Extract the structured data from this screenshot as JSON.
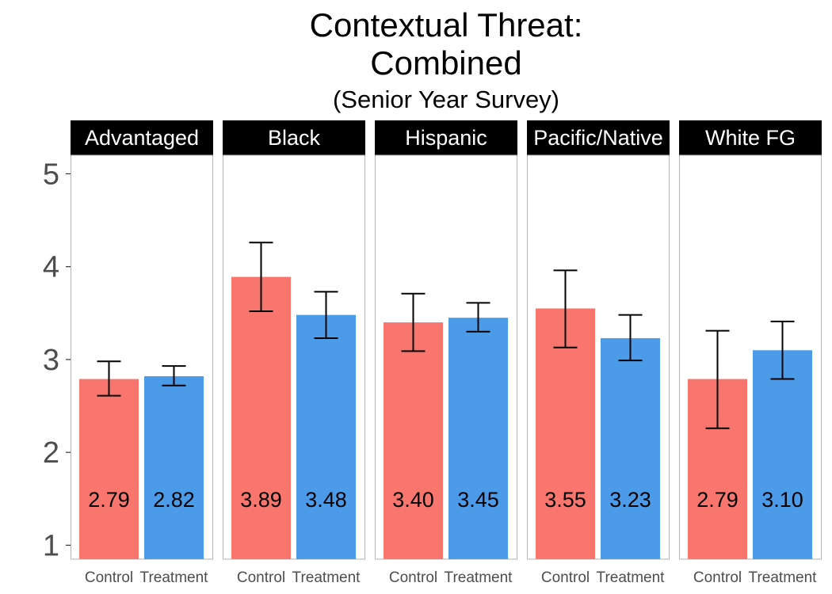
{
  "chart_data": {
    "type": "bar",
    "title_line1": "Contextual Threat:",
    "title_line2": "Combined",
    "subtitle": "(Senior Year Survey)",
    "ylim": [
      0.85,
      5.2
    ],
    "yticks": [
      "1",
      "2",
      "3",
      "4",
      "5"
    ],
    "grid": false,
    "categories": [
      "Control",
      "Treatment"
    ],
    "colors": {
      "Control": "#F8766D",
      "Treatment": "#4C9BE8"
    },
    "panels": [
      {
        "name": "Advantaged",
        "bars": [
          {
            "group": "Control",
            "value": 2.79,
            "label": "2.79",
            "err_low": 2.61,
            "err_high": 2.98
          },
          {
            "group": "Treatment",
            "value": 2.82,
            "label": "2.82",
            "err_low": 2.72,
            "err_high": 2.93
          }
        ]
      },
      {
        "name": "Black",
        "bars": [
          {
            "group": "Control",
            "value": 3.89,
            "label": "3.89",
            "err_low": 3.52,
            "err_high": 4.26
          },
          {
            "group": "Treatment",
            "value": 3.48,
            "label": "3.48",
            "err_low": 3.23,
            "err_high": 3.73
          }
        ]
      },
      {
        "name": "Hispanic",
        "bars": [
          {
            "group": "Control",
            "value": 3.4,
            "label": "3.40",
            "err_low": 3.09,
            "err_high": 3.71
          },
          {
            "group": "Treatment",
            "value": 3.45,
            "label": "3.45",
            "err_low": 3.3,
            "err_high": 3.61
          }
        ]
      },
      {
        "name": "Pacific/Native",
        "bars": [
          {
            "group": "Control",
            "value": 3.55,
            "label": "3.55",
            "err_low": 3.13,
            "err_high": 3.96
          },
          {
            "group": "Treatment",
            "value": 3.23,
            "label": "3.23",
            "err_low": 2.99,
            "err_high": 3.48
          }
        ]
      },
      {
        "name": "White FG",
        "bars": [
          {
            "group": "Control",
            "value": 2.79,
            "label": "2.79",
            "err_low": 2.26,
            "err_high": 3.31
          },
          {
            "group": "Treatment",
            "value": 3.1,
            "label": "3.10",
            "err_low": 2.79,
            "err_high": 3.41
          }
        ]
      }
    ]
  }
}
